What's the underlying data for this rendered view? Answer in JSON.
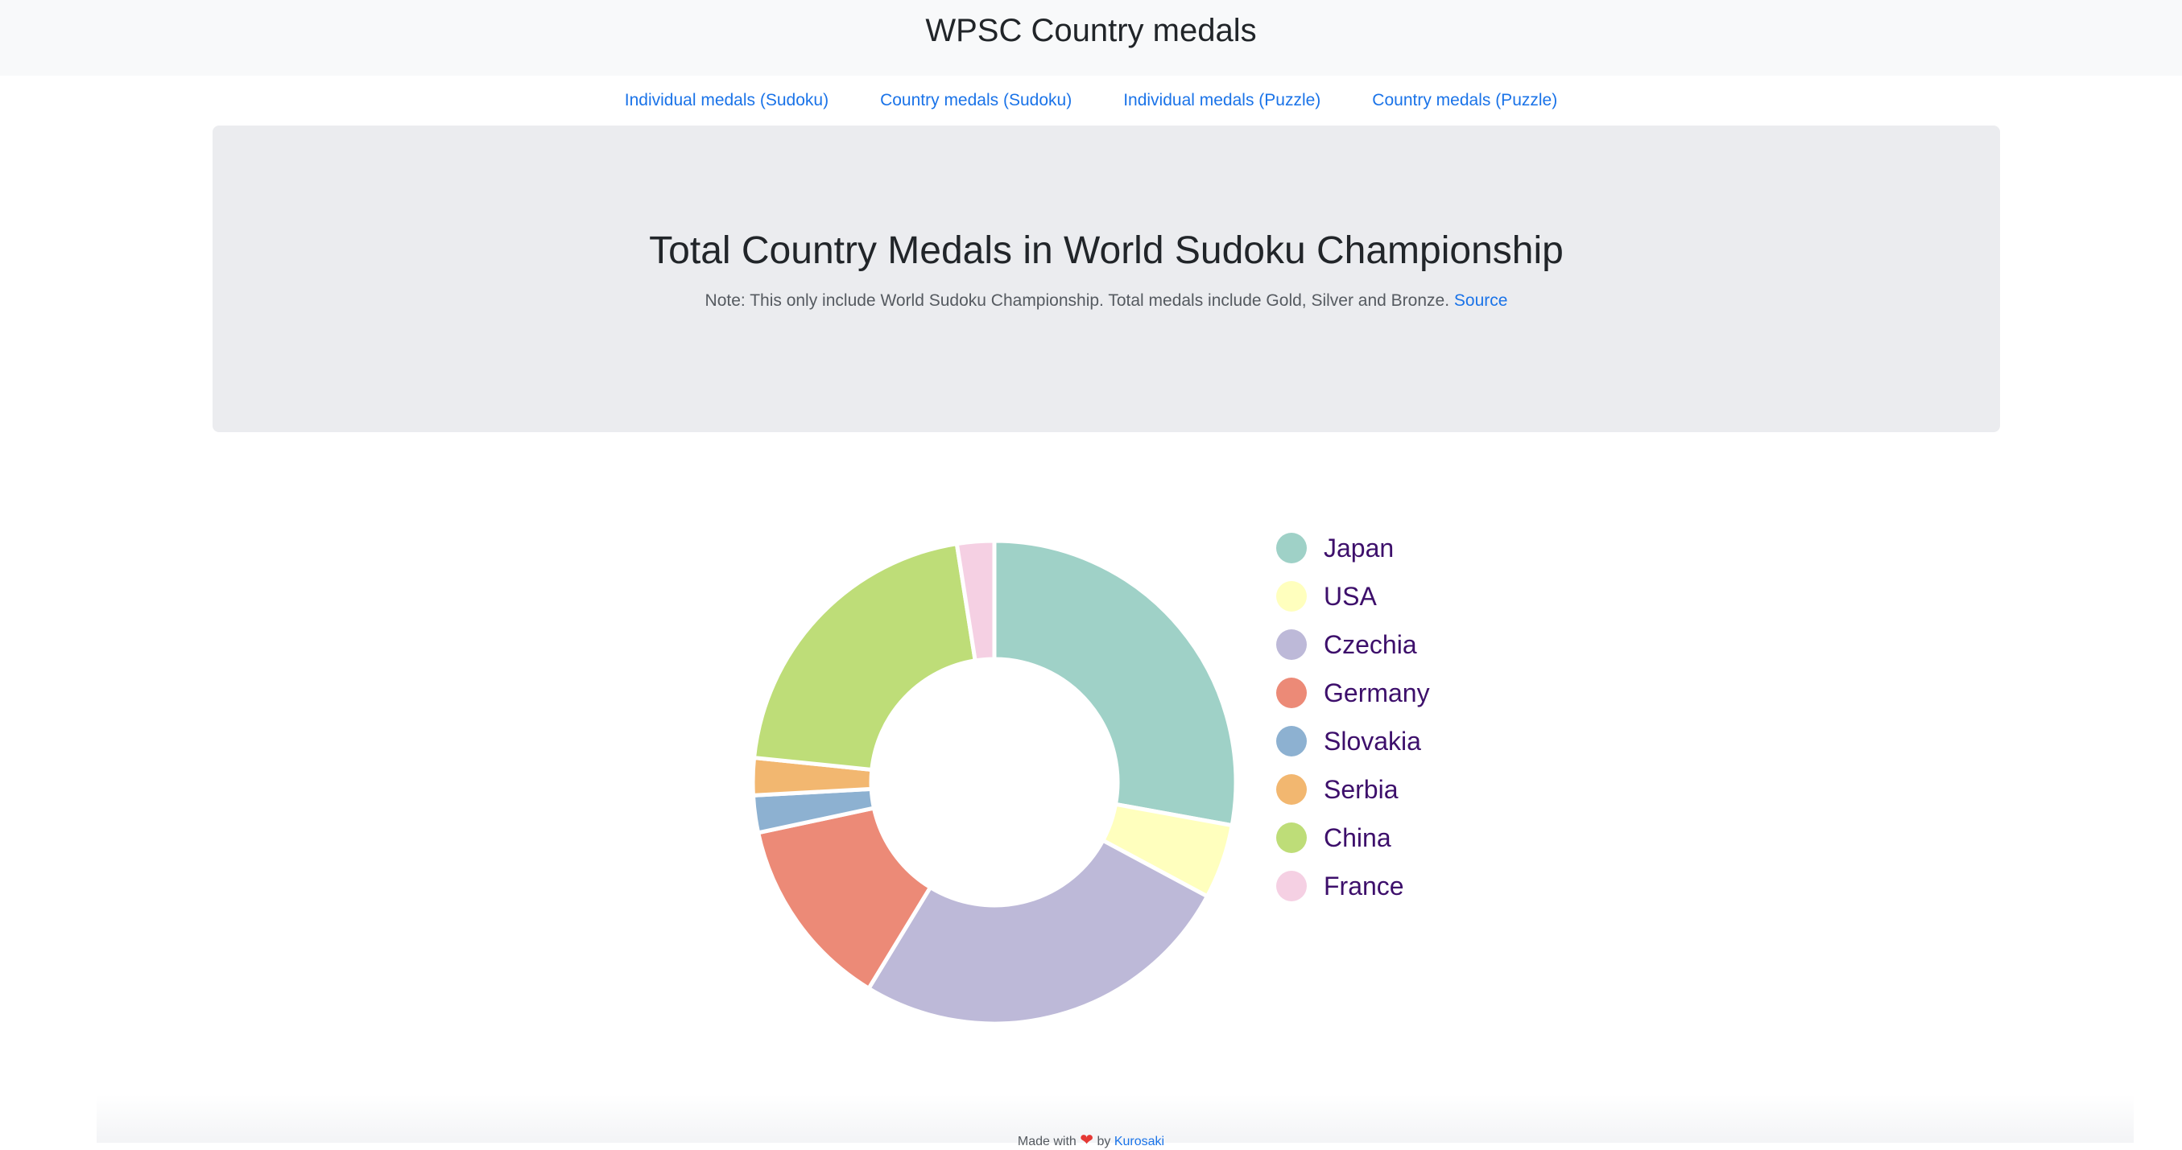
{
  "header": {
    "title": "WPSC Country medals"
  },
  "nav": [
    {
      "label": "Individual medals (Sudoku)"
    },
    {
      "label": "Country medals (Sudoku)"
    },
    {
      "label": "Individual medals (Puzzle)"
    },
    {
      "label": "Country medals (Puzzle)"
    }
  ],
  "jumbotron": {
    "note": "Note: This only include World Sudoku Championship. Total medals include Gold, Silver and Bronze.",
    "source_label": "Source"
  },
  "chart_data": {
    "type": "pie",
    "variant": "doughnut",
    "title": "Total Country Medals in World Sudoku Championship",
    "legend_position": "right",
    "categories": [
      "Japan",
      "USA",
      "Czechia",
      "Germany",
      "Slovakia",
      "Serbia",
      "China",
      "France"
    ],
    "values": [
      28,
      5,
      26,
      13,
      2.5,
      2.5,
      21,
      2.5
    ],
    "colors": [
      "#9fd1c7",
      "#ffffbe",
      "#bdb9d8",
      "#ec8a77",
      "#8db1d1",
      "#f2b770",
      "#bedd78",
      "#f5d0e3"
    ]
  },
  "footer": {
    "prefix": "Made with",
    "by": "by",
    "author": "Kurosaki"
  }
}
